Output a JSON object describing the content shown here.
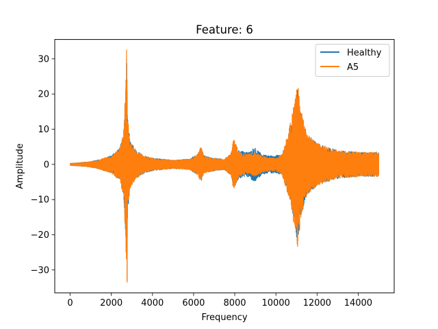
{
  "chart_data": {
    "type": "line",
    "title": "Feature: 6",
    "xlabel": "Frequency",
    "ylabel": "Amplitude",
    "xlim": [
      -750,
      15750
    ],
    "ylim": [
      -36.5,
      35.5
    ],
    "xticks": [
      0,
      2000,
      4000,
      6000,
      8000,
      10000,
      12000,
      14000
    ],
    "yticks": [
      -30,
      -20,
      -10,
      0,
      10,
      20,
      30
    ],
    "legend_position": "upper-right",
    "grid": false,
    "series": [
      {
        "name": "Healthy",
        "color": "#1f77b4",
        "envelope": [
          [
            0,
            0.3
          ],
          [
            500,
            0.5
          ],
          [
            1000,
            0.8
          ],
          [
            1500,
            1.5
          ],
          [
            2000,
            2.5
          ],
          [
            2400,
            4.5
          ],
          [
            2600,
            9
          ],
          [
            2700,
            22
          ],
          [
            2750,
            29
          ],
          [
            2800,
            13
          ],
          [
            2900,
            7
          ],
          [
            3200,
            4
          ],
          [
            3600,
            2.5
          ],
          [
            4000,
            1.8
          ],
          [
            5000,
            1.2
          ],
          [
            5800,
            1.5
          ],
          [
            6200,
            3
          ],
          [
            6350,
            5
          ],
          [
            6500,
            2.5
          ],
          [
            7000,
            1.8
          ],
          [
            7500,
            1.5
          ],
          [
            7800,
            3
          ],
          [
            7950,
            6.5
          ],
          [
            8200,
            4
          ],
          [
            8600,
            3.5
          ],
          [
            9000,
            5
          ],
          [
            9300,
            3
          ],
          [
            9600,
            2.5
          ],
          [
            10000,
            2.5
          ],
          [
            10300,
            3
          ],
          [
            10600,
            8
          ],
          [
            10900,
            16
          ],
          [
            11050,
            23
          ],
          [
            11200,
            15
          ],
          [
            11500,
            9
          ],
          [
            12000,
            6
          ],
          [
            13000,
            4
          ],
          [
            14000,
            3.5
          ],
          [
            15000,
            3.5
          ]
        ],
        "peak": 30,
        "trough": -33
      },
      {
        "name": "A5",
        "color": "#ff7f0e",
        "envelope": [
          [
            0,
            0.3
          ],
          [
            500,
            0.5
          ],
          [
            1000,
            0.8
          ],
          [
            1500,
            1.5
          ],
          [
            2000,
            2.5
          ],
          [
            2400,
            4.5
          ],
          [
            2600,
            9
          ],
          [
            2700,
            23
          ],
          [
            2750,
            31
          ],
          [
            2800,
            14
          ],
          [
            2900,
            7
          ],
          [
            3200,
            4
          ],
          [
            3600,
            2.5
          ],
          [
            4000,
            1.8
          ],
          [
            5000,
            1.2
          ],
          [
            5800,
            1.5
          ],
          [
            6200,
            3
          ],
          [
            6350,
            5.2
          ],
          [
            6500,
            2.5
          ],
          [
            7000,
            1.8
          ],
          [
            7500,
            1.5
          ],
          [
            7800,
            3
          ],
          [
            7950,
            7.5
          ],
          [
            8200,
            3.5
          ],
          [
            8600,
            2.8
          ],
          [
            9000,
            3.5
          ],
          [
            9300,
            2.5
          ],
          [
            9600,
            2
          ],
          [
            10000,
            1.8
          ],
          [
            10300,
            3
          ],
          [
            10600,
            9
          ],
          [
            10900,
            18
          ],
          [
            11050,
            24
          ],
          [
            11200,
            16
          ],
          [
            11500,
            9
          ],
          [
            12000,
            6
          ],
          [
            13000,
            4
          ],
          [
            14000,
            3.5
          ],
          [
            15000,
            3.5
          ]
        ],
        "peak": 32.5,
        "trough": -33.5
      }
    ]
  }
}
